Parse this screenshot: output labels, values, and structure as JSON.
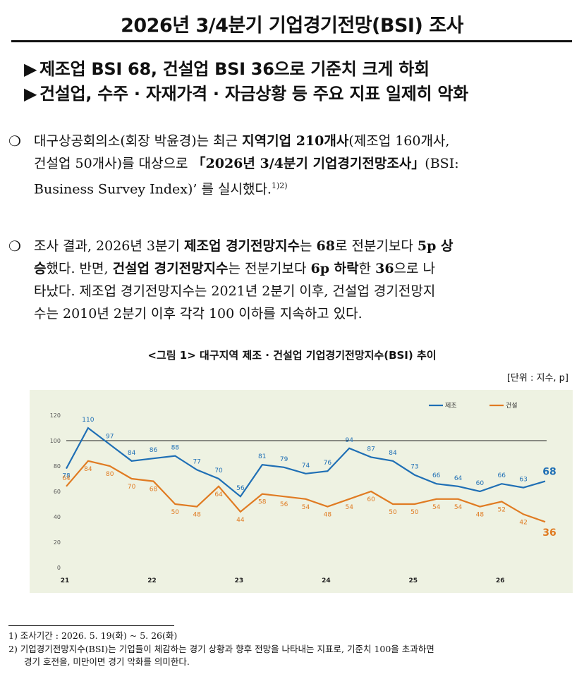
{
  "title": "2026년 3/4분기 기업경기전망(BSI) 조사",
  "headlines": [
    {
      "marker": "▶",
      "text": "제조업 BSI 68, 건설업 BSI 36으로 기준치 크게 하회"
    },
    {
      "marker": "▶",
      "text": "건설업, 수주 · 자재가격 · 자금상황 등 주요 지표 일제히 악화"
    }
  ],
  "paragraph1": {
    "bullet": "❍",
    "p1": "대구상공회의소(회장 박윤경)는 최근 ",
    "b1": "지역기업 210개사",
    "p2": "(제조업 160개사,",
    "l2a": "건설업 50개사)를 대상으로 ",
    "b2": "「2026년 3/4분기 기업경기전망조사」",
    "l2b": "(BSI:",
    "l3": "Business Survey Index)’ 를 실시했다.",
    "sup": "1)2)"
  },
  "paragraph2": {
    "bullet": "❍",
    "t1": "조사 결과, 2026년 3분기 ",
    "b1": "제조업 경기전망지수",
    "t2": "는 ",
    "b2": "68",
    "t3": "로 전분기보다 ",
    "b3": "5p 상",
    "l2a": "승",
    "l2b": "했다. 반면, ",
    "b4": "건설업 경기전망지수",
    "l2c": "는 전분기보다 ",
    "b5": "6p 하락",
    "l2d": "한 ",
    "b6": "36",
    "l2e": "으로 나",
    "l3": "타났다. 제조업 경기전망지수는 2021년 2분기 이후, 건설업 경기전망지",
    "l4": "수는 2010년 2분기 이후 각각 100 이하를 지속하고 있다."
  },
  "figure": {
    "title": "<그림 1> 대구지역 제조 · 건설업 기업경기전망지수(BSI) 추이",
    "unit": "[단위 : 지수, p]"
  },
  "chart_data": {
    "type": "line",
    "title": "",
    "xlabel": "",
    "ylabel": "",
    "ylim": [
      0,
      120
    ],
    "yticks": [
      0,
      20,
      40,
      60,
      80,
      100,
      120
    ],
    "reference_line": 100,
    "x_year_labels": [
      "21",
      "22",
      "23",
      "24",
      "25",
      "26"
    ],
    "legend_position": "top-right",
    "colors": {
      "manufacturing": "#1f6fb5",
      "construction": "#e07b22",
      "background": "#eef2e2"
    },
    "series": [
      {
        "name": "제조",
        "values": [
          78,
          110,
          97,
          84,
          86,
          88,
          77,
          70,
          56,
          81,
          79,
          74,
          76,
          94,
          87,
          84,
          73,
          66,
          64,
          60,
          66,
          63,
          68
        ]
      },
      {
        "name": "건설",
        "values": [
          64,
          84,
          80,
          70,
          68,
          50,
          48,
          64,
          44,
          58,
          56,
          54,
          48,
          54,
          60,
          50,
          50,
          54,
          54,
          48,
          52,
          42,
          36
        ]
      }
    ]
  },
  "footnotes": [
    "1) 조사기간 : 2026. 5. 19(화) ~ 5. 26(화)",
    "2) 기업경기전망지수(BSI)는 기업들이 체감하는 경기 상황과 향후 전망을 나타내는 지표로, 기준치 100을 초과하면",
    "경기 호전을, 미만이면 경기 악화를 의미한다."
  ]
}
